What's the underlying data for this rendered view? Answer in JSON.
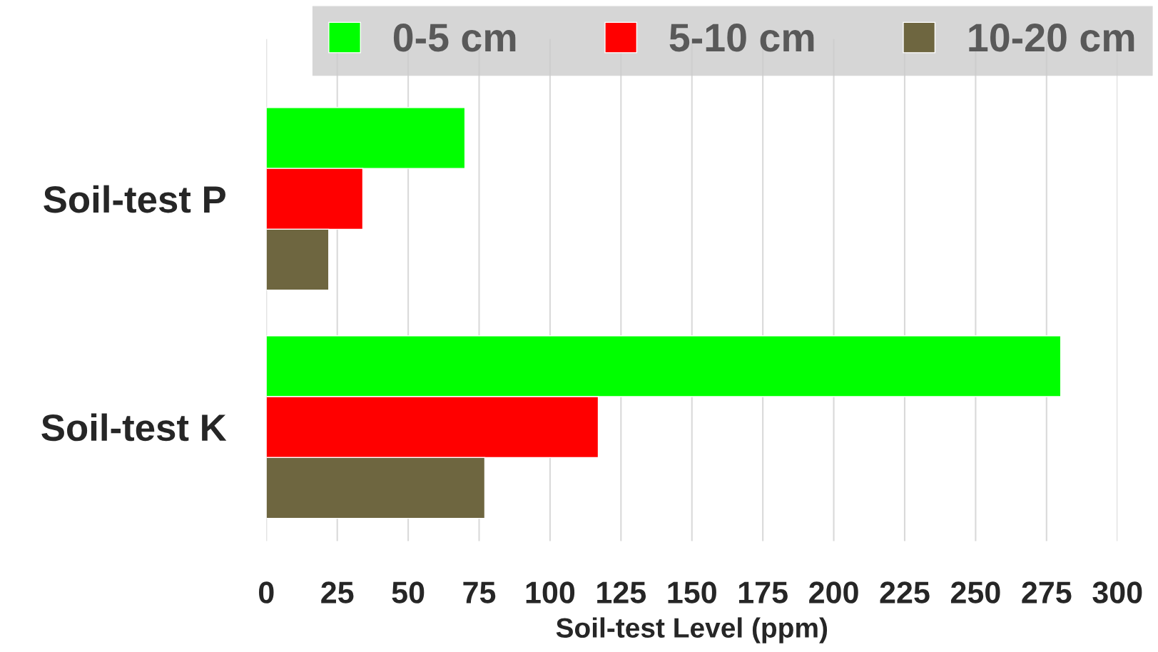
{
  "chart_data": {
    "type": "bar",
    "orientation": "horizontal",
    "xlabel": "Soil-test Level (ppm)",
    "categories": [
      "Soil-test P",
      "Soil-test K"
    ],
    "series": [
      {
        "name": "0-5 cm",
        "color": "#00ff00",
        "values": [
          70,
          280
        ]
      },
      {
        "name": "5-10 cm",
        "color": "#ff0000",
        "values": [
          34,
          117
        ]
      },
      {
        "name": "10-20 cm",
        "color": "#6e6640",
        "values": [
          22,
          77
        ]
      }
    ],
    "xlim": [
      0,
      300
    ],
    "xticks": [
      0,
      25,
      50,
      75,
      100,
      125,
      150,
      175,
      200,
      225,
      250,
      275,
      300
    ],
    "grid": "x",
    "legend": "top"
  }
}
